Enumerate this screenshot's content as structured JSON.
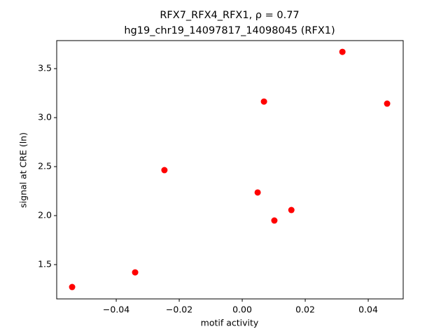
{
  "chart_data": {
    "type": "scatter",
    "title": "RFX7_RFX4_RFX1, ρ = 0.77",
    "subtitle": "hg19_chr19_14097817_14098045 (RFX1)",
    "x_label": "motif activity",
    "y_label": "signal at CRE (ln)",
    "color": "#ff0000",
    "x": [
      -0.054,
      -0.034,
      -0.0247,
      0.0049,
      0.0069,
      0.0102,
      0.0156,
      0.0318,
      0.046
    ],
    "values": [
      1.271,
      1.421,
      2.464,
      2.236,
      3.164,
      1.95,
      2.057,
      3.671,
      3.143
    ],
    "xlim": [
      -0.0589,
      0.0511
    ],
    "ylim": [
      1.15,
      3.786
    ],
    "xticks": [
      {
        "value": -0.04,
        "label": "−0.04"
      },
      {
        "value": -0.02,
        "label": "−0.02"
      },
      {
        "value": 0,
        "label": "0.00"
      },
      0.02,
      0.04
    ],
    "yticks": [
      1.5,
      {
        "value": 2,
        "label": "2.0"
      },
      2.5,
      {
        "value": 3,
        "label": "3.0"
      },
      3.5
    ],
    "grid": false
  }
}
